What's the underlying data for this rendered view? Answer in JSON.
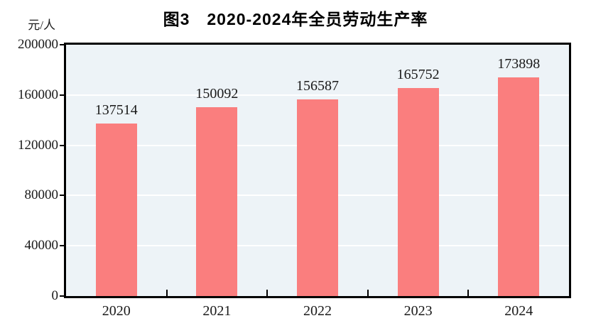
{
  "chart": {
    "colors": {
      "bar_fill": "#FA7E7E",
      "plot_bg": "#EDF3F7",
      "gridline": "#FFFFFF",
      "axis": "#000000",
      "text": "#1A1A1A",
      "page_bg": "#FFFFFF"
    }
  },
  "chart_data": {
    "type": "bar",
    "title": "图3　2020-2024年全员劳动生产率",
    "ylabel": "元/人",
    "categories": [
      "2020",
      "2021",
      "2022",
      "2023",
      "2024"
    ],
    "values": [
      137514,
      150092,
      156587,
      165752,
      173898
    ],
    "data_labels": [
      "137514",
      "150092",
      "156587",
      "165752",
      "173898"
    ],
    "ylim": [
      0,
      200000
    ],
    "ytick_interval": 40000,
    "yticks": [
      0,
      40000,
      80000,
      120000,
      160000,
      200000
    ],
    "ytick_labels": [
      "0",
      "40000",
      "80000",
      "120000",
      "160000",
      "200000"
    ],
    "grid": true,
    "legend": false,
    "legend_position": "none"
  }
}
